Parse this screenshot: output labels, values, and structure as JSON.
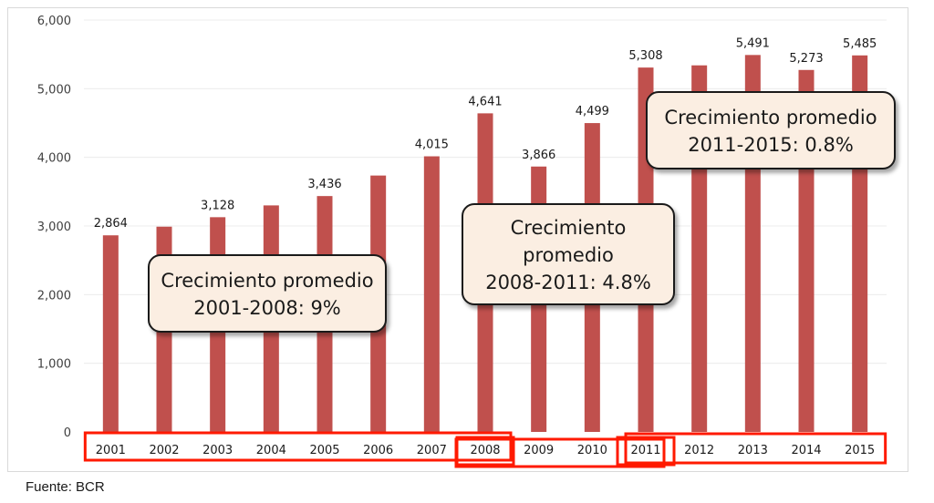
{
  "chart_data": {
    "type": "bar",
    "categories": [
      "2001",
      "2002",
      "2003",
      "2004",
      "2005",
      "2006",
      "2007",
      "2008",
      "2009",
      "2010",
      "2011",
      "2012",
      "2013",
      "2014",
      "2015"
    ],
    "values": [
      2864,
      2990,
      3128,
      3300,
      3436,
      3735,
      4015,
      4641,
      3866,
      4499,
      5308,
      5340,
      5491,
      5273,
      5485
    ],
    "data_labels": {
      "2001": "2,864",
      "2003": "3,128",
      "2005": "3,436",
      "2007": "4,015",
      "2008": "4,641",
      "2009": "3,866",
      "2010": "4,499",
      "2011": "5,308",
      "2013": "5,491",
      "2014": "5,273",
      "2015": "5,485"
    },
    "ylim": [
      0,
      6000
    ],
    "yticks": [
      0,
      1000,
      2000,
      3000,
      4000,
      5000,
      6000
    ],
    "ytick_labels": [
      "0",
      "1,000",
      "2,000",
      "3,000",
      "4,000",
      "5,000",
      "6,000"
    ],
    "grid": true,
    "bar_color": "#c0504d",
    "highlight_color": "#ff1a00",
    "highlighted_ranges": [
      [
        "2001",
        "2008"
      ],
      [
        "2008",
        "2011"
      ],
      [
        "2011",
        "2015"
      ]
    ],
    "annotations": [
      {
        "lines": [
          "Crecimiento promedio",
          "2001-2008: 9%"
        ]
      },
      {
        "lines": [
          "Crecimiento",
          "promedio",
          "2008-2011: 4.8%"
        ]
      },
      {
        "lines": [
          "Crecimiento promedio",
          "2011-2015: 0.8%"
        ]
      }
    ]
  },
  "source": "Fuente: BCR"
}
